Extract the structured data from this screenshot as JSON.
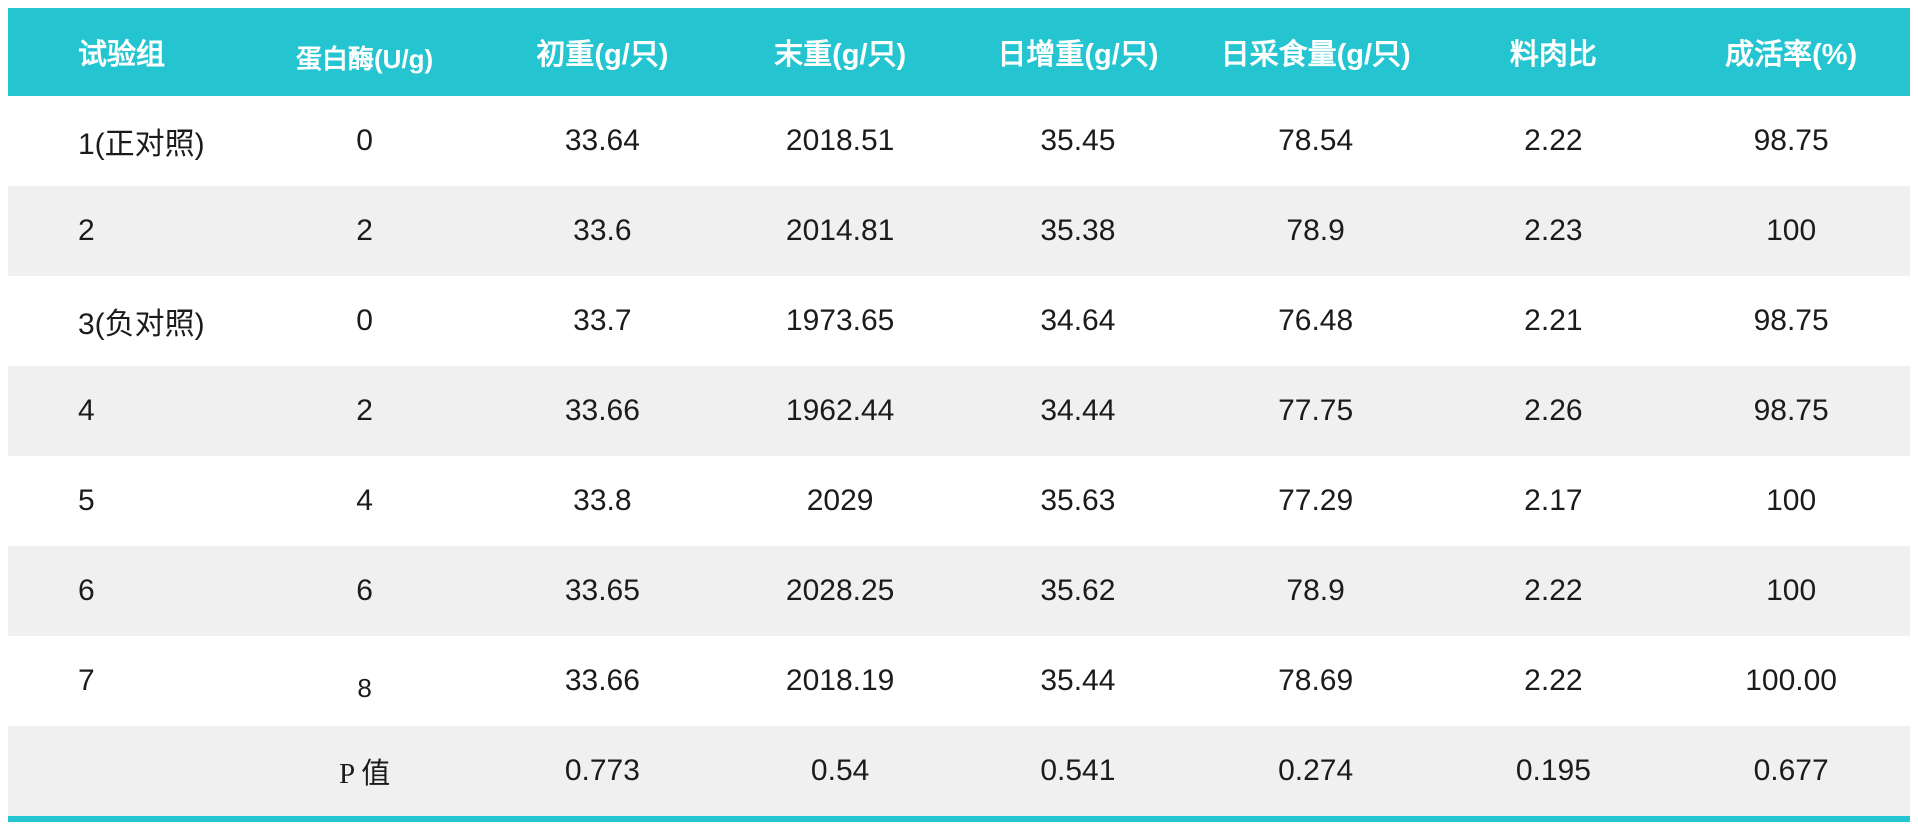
{
  "colors": {
    "accent": "#24c5d0",
    "stripe": "#f0f0f0",
    "text": "#1b1b1b",
    "header_text": "#ffffff"
  },
  "table": {
    "columns": [
      {
        "key": "group",
        "label": "试验组"
      },
      {
        "key": "protease",
        "label": "蛋白酶(U/g)"
      },
      {
        "key": "initial_weight",
        "label": "初重(g/只)"
      },
      {
        "key": "final_weight",
        "label": "末重(g/只)"
      },
      {
        "key": "daily_gain",
        "label": "日增重(g/只)"
      },
      {
        "key": "daily_intake",
        "label": "日采食量(g/只)"
      },
      {
        "key": "feed_ratio",
        "label": "料肉比"
      },
      {
        "key": "survival_rate",
        "label": "成活率(%)"
      }
    ],
    "rows": [
      {
        "name": "row-group-1",
        "cells": [
          "1(正对照)",
          "0",
          "33.64",
          "2018.51",
          "35.45",
          "78.54",
          "2.22",
          "98.75"
        ]
      },
      {
        "name": "row-group-2",
        "cells": [
          "2",
          "2",
          "33.6",
          "2014.81",
          "35.38",
          "78.9",
          "2.23",
          "100"
        ]
      },
      {
        "name": "row-group-3",
        "cells": [
          "3(负对照)",
          "0",
          "33.7",
          "1973.65",
          "34.64",
          "76.48",
          "2.21",
          "98.75"
        ]
      },
      {
        "name": "row-group-4",
        "cells": [
          "4",
          "2",
          "33.66",
          "1962.44",
          "34.44",
          "77.75",
          "2.26",
          "98.75"
        ]
      },
      {
        "name": "row-group-5",
        "cells": [
          "5",
          "4",
          "33.8",
          "2029",
          "35.63",
          "77.29",
          "2.17",
          "100"
        ]
      },
      {
        "name": "row-group-6",
        "cells": [
          "6",
          "6",
          "33.65",
          "2028.25",
          "35.62",
          "78.9",
          "2.22",
          "100"
        ]
      },
      {
        "name": "row-group-7",
        "cells": [
          "7",
          "8",
          "33.66",
          "2018.19",
          "35.44",
          "78.69",
          "2.22",
          "100.00"
        ]
      },
      {
        "name": "p-value-row",
        "cells": [
          "",
          "P 值",
          "0.773",
          "0.54",
          "0.541",
          "0.274",
          "0.195",
          "0.677"
        ]
      }
    ]
  }
}
